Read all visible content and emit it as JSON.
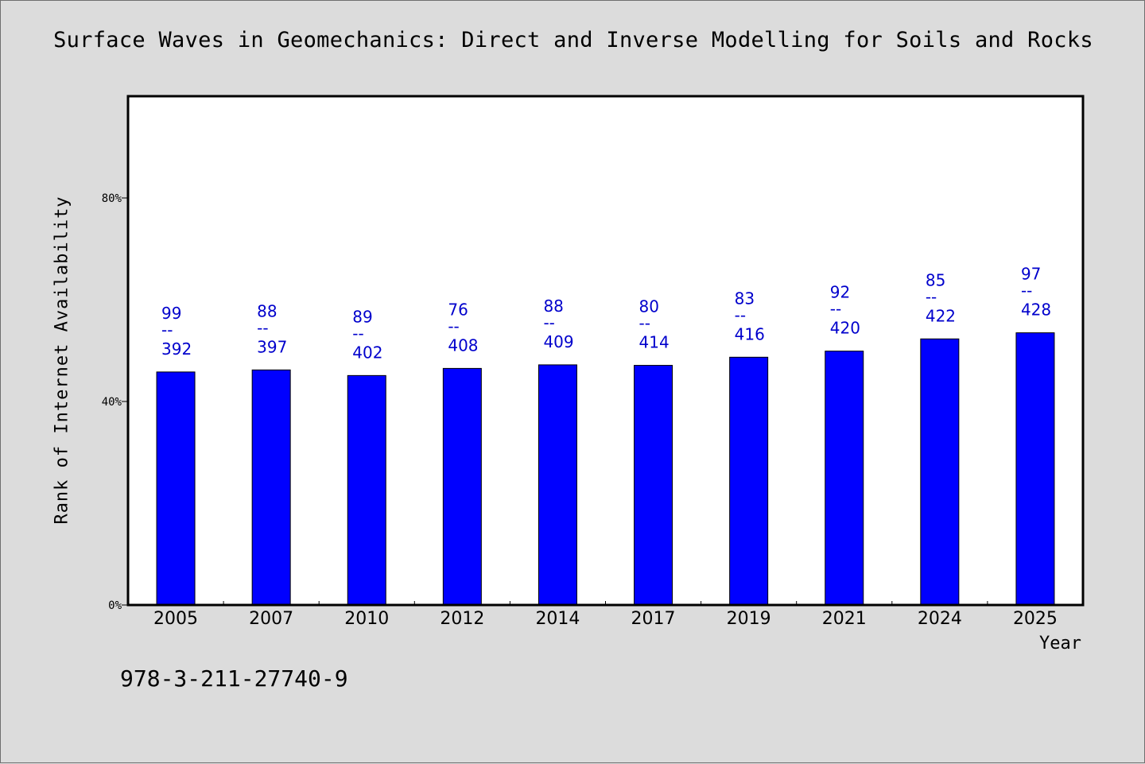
{
  "chart_data": {
    "type": "bar",
    "title": "Surface Waves in Geomechanics: Direct and Inverse Modelling for Soils and Rocks",
    "xlabel": "Year",
    "ylabel": "Rank of Internet Availability",
    "categories": [
      "2005",
      "2007",
      "2010",
      "2012",
      "2014",
      "2017",
      "2019",
      "2021",
      "2024",
      "2025"
    ],
    "values": [
      45.8,
      46.2,
      45.1,
      46.5,
      47.2,
      47.1,
      48.7,
      49.9,
      52.3,
      53.5
    ],
    "data_labels": [
      {
        "top": "99",
        "sep": "--",
        "bottom": "392"
      },
      {
        "top": "88",
        "sep": "--",
        "bottom": "397"
      },
      {
        "top": "89",
        "sep": "--",
        "bottom": "402"
      },
      {
        "top": "76",
        "sep": "--",
        "bottom": "408"
      },
      {
        "top": "88",
        "sep": "--",
        "bottom": "409"
      },
      {
        "top": "80",
        "sep": "--",
        "bottom": "414"
      },
      {
        "top": "83",
        "sep": "--",
        "bottom": "416"
      },
      {
        "top": "92",
        "sep": "--",
        "bottom": "420"
      },
      {
        "top": "85",
        "sep": "--",
        "bottom": "422"
      },
      {
        "top": "97",
        "sep": "--",
        "bottom": "428"
      }
    ],
    "ylim": [
      0,
      100
    ],
    "yticks": [
      0,
      40,
      80
    ],
    "ytick_labels": [
      "0%",
      "40%",
      "80%"
    ],
    "grid": false,
    "legend": "none",
    "colors": {
      "bar": "#0000ff",
      "label": "#0000cc",
      "background": "#dcdcdc",
      "plot": "#ffffff"
    }
  },
  "footnote": "978-3-211-27740-9"
}
